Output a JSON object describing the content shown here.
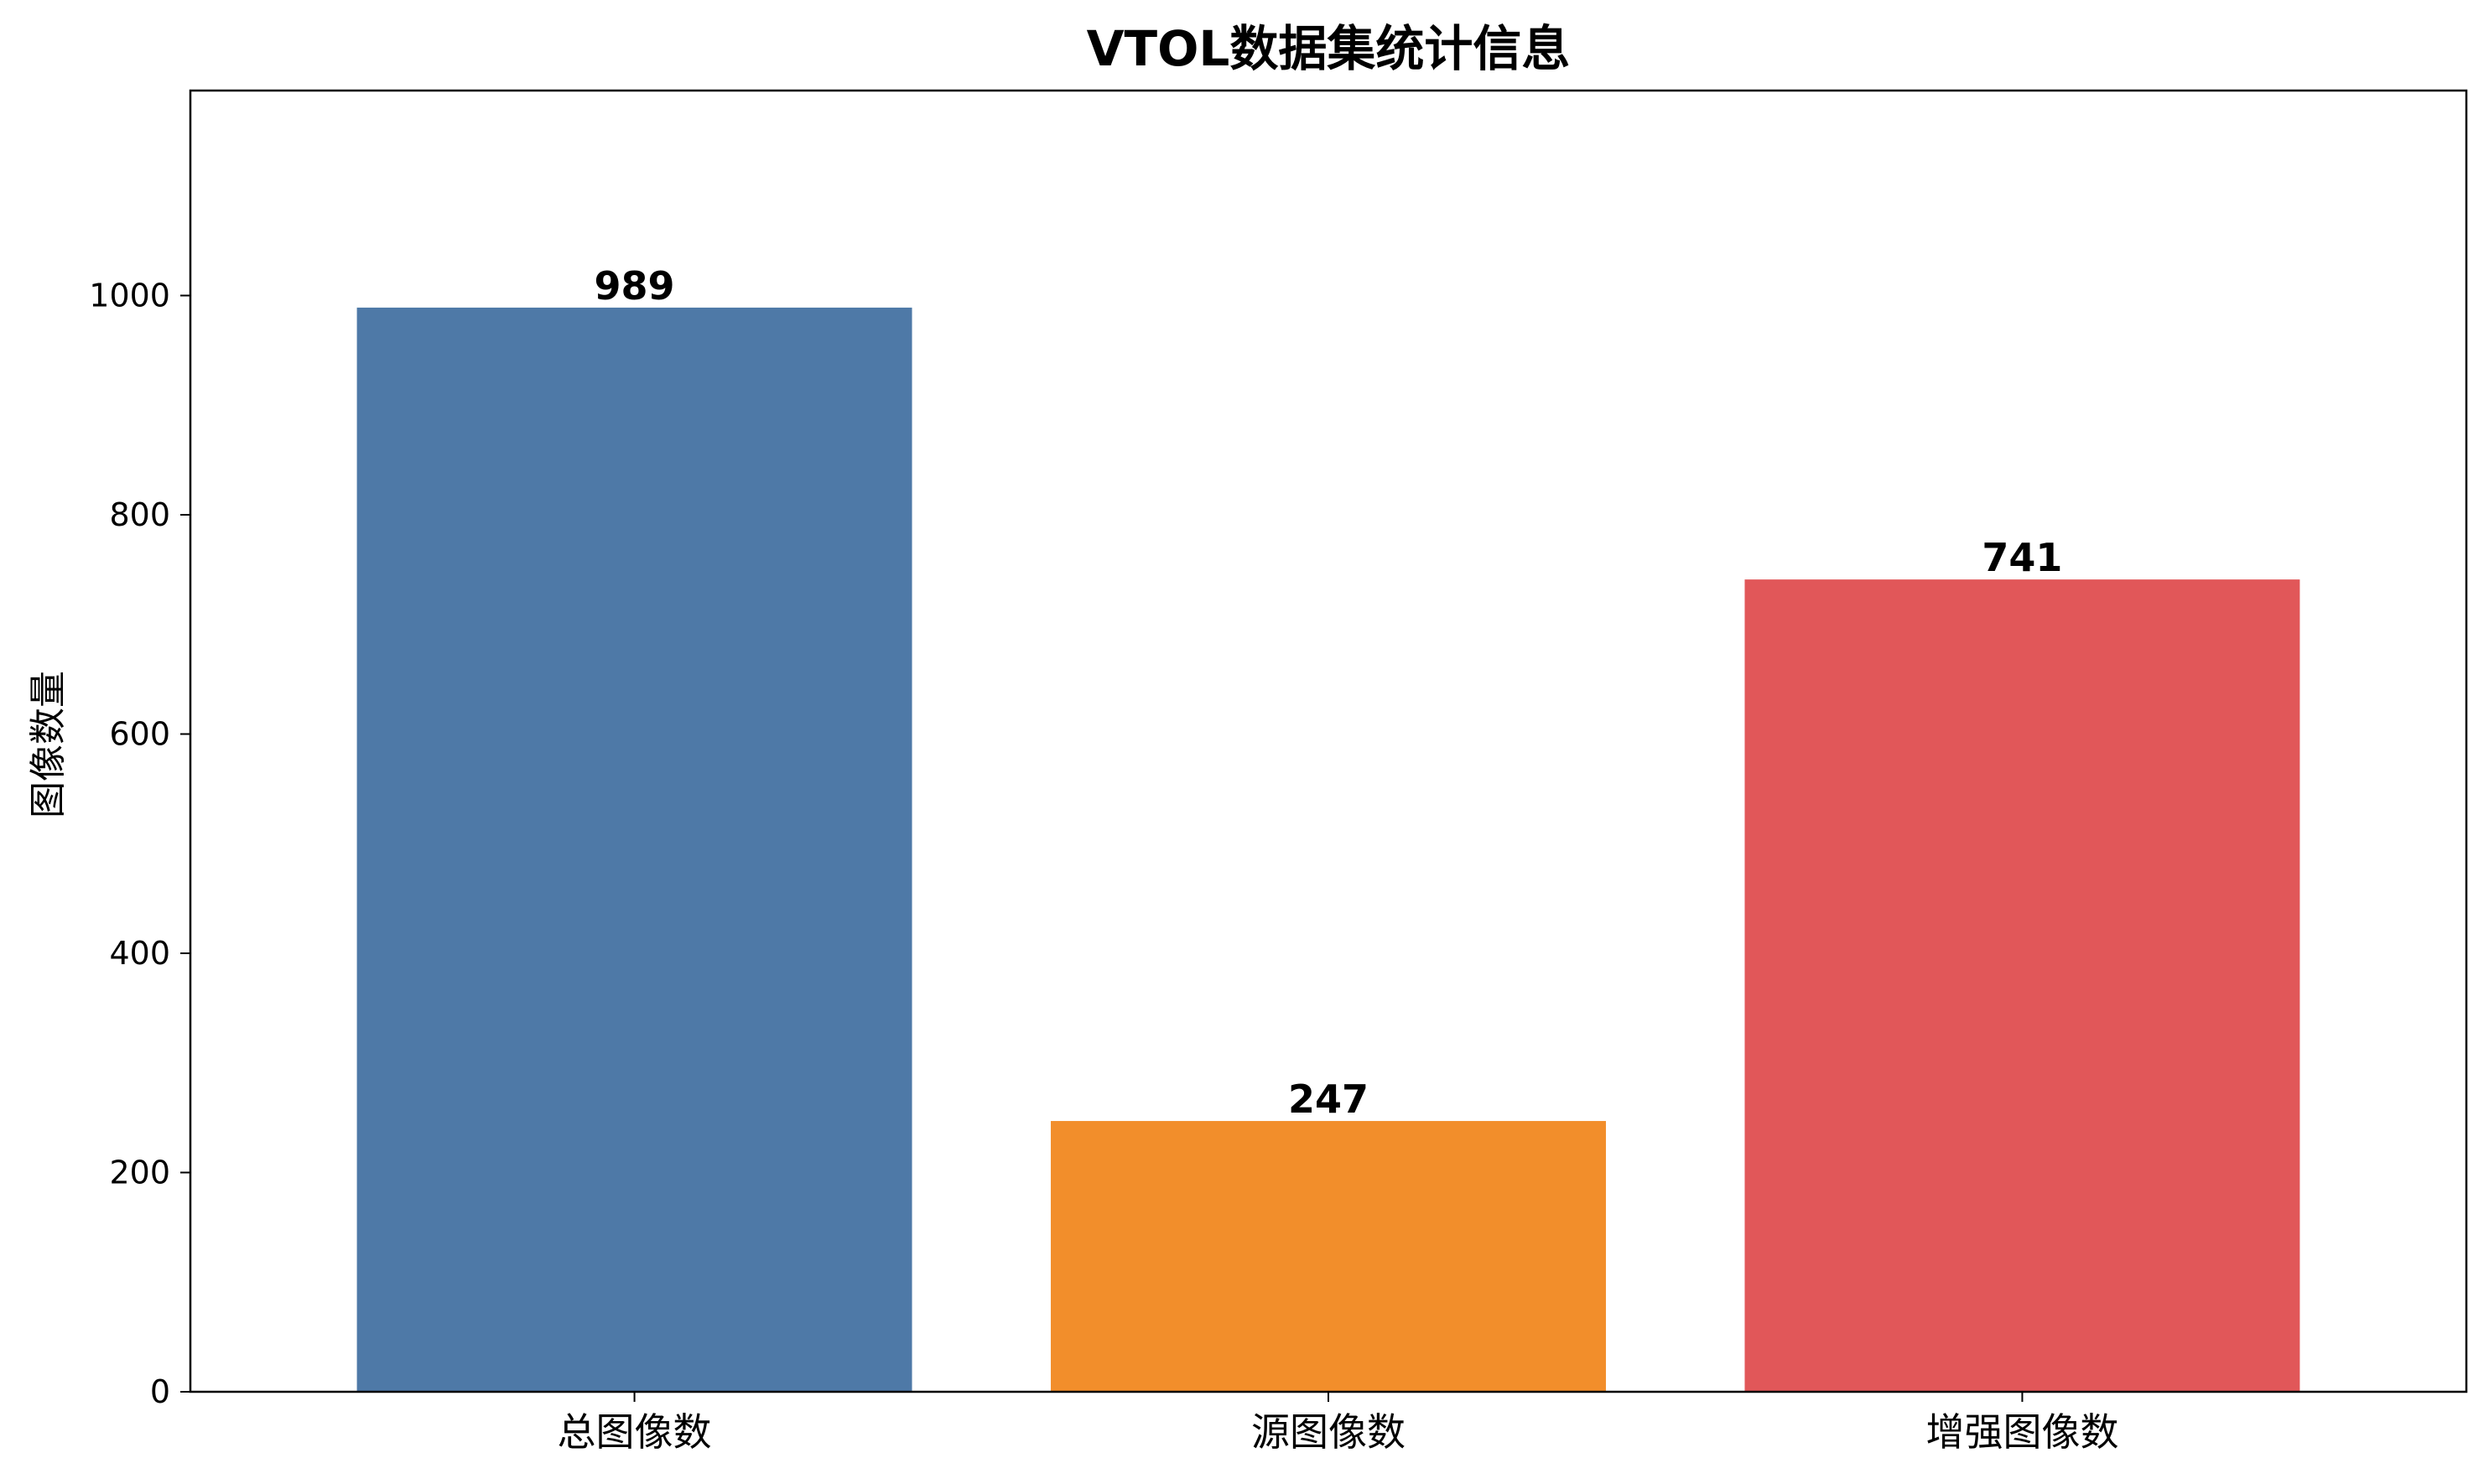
{
  "chart_data": {
    "type": "bar",
    "title": "VTOL数据集统计信息",
    "xlabel": "",
    "ylabel": "图像数量",
    "categories": [
      "总图像数",
      "源图像数",
      "增强图像数"
    ],
    "values": [
      989,
      247,
      741
    ],
    "value_labels": [
      "989",
      "247",
      "741"
    ],
    "colors": [
      "#4e79a7",
      "#f28e2b",
      "#e15759"
    ],
    "ylim": [
      0,
      1187
    ],
    "yticks": [
      0,
      200,
      400,
      600,
      800,
      1000
    ],
    "grid": false,
    "legend": "none"
  }
}
